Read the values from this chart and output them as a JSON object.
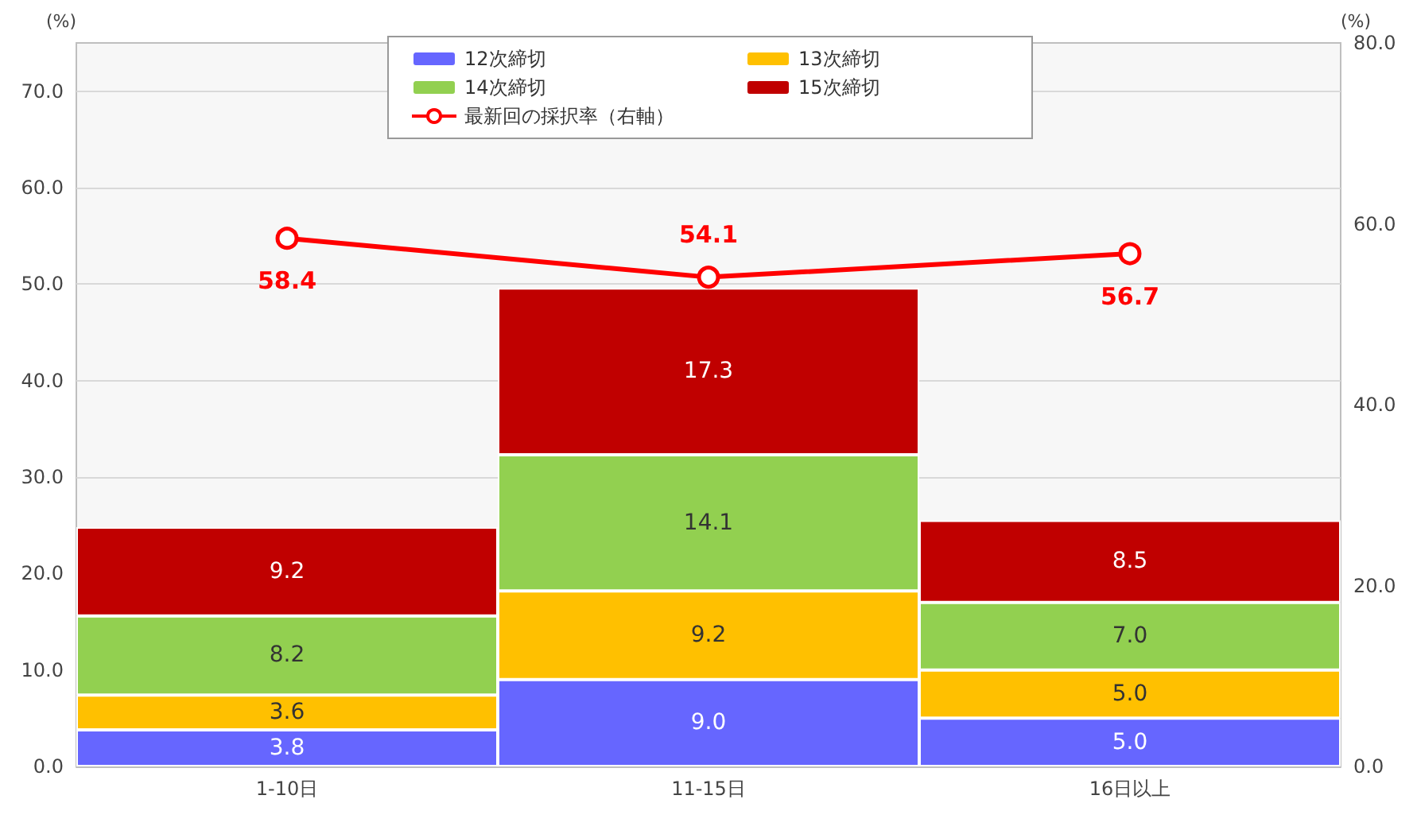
{
  "chart_data": {
    "type": "bar",
    "stacked": true,
    "categories": [
      "1-10日",
      "11-15日",
      "16日以上"
    ],
    "ylabel": "(%)",
    "y2label": "(%)",
    "ylim": [
      0,
      75
    ],
    "yticks": [
      {
        "value": 0,
        "label": "0.0"
      },
      {
        "value": 10,
        "label": "10.0"
      },
      {
        "value": 20,
        "label": "20.0"
      },
      {
        "value": 30,
        "label": "30.0"
      },
      {
        "value": 40,
        "label": "40.0"
      },
      {
        "value": 50,
        "label": "50.0"
      },
      {
        "value": 60,
        "label": "60.0"
      },
      {
        "value": 70,
        "label": "70.0"
      }
    ],
    "y2lim": [
      0,
      80
    ],
    "y2ticks": [
      {
        "value": 0,
        "label": "0.0"
      },
      {
        "value": 20,
        "label": "20.0"
      },
      {
        "value": 40,
        "label": "40.0"
      },
      {
        "value": 60,
        "label": "60.0"
      },
      {
        "value": 80,
        "label": "80.0"
      }
    ],
    "series": [
      {
        "name": "12次締切",
        "color": "#6666ff",
        "values": [
          3.8,
          9,
          5
        ],
        "value_labels": [
          "3.8",
          "9.0",
          "5.0"
        ]
      },
      {
        "name": "13次締切",
        "color": "#ffc000",
        "values": [
          3.6,
          9.2,
          5
        ],
        "value_labels": [
          "3.6",
          "9.2",
          "5.0"
        ]
      },
      {
        "name": "14次締切",
        "color": "#92d050",
        "values": [
          8.2,
          14.1,
          7
        ],
        "value_labels": [
          "8.2",
          "14.1",
          "7.0"
        ]
      },
      {
        "name": "15次締切",
        "color": "#c00000",
        "values": [
          9.2,
          17.3,
          8.5
        ],
        "value_labels": [
          "9.2",
          "17.3",
          "8.5"
        ]
      },
      {
        "name": "最新回の採択率（右軸）",
        "type": "line",
        "axis": "y2",
        "color": "#ff0000",
        "marker": "circle",
        "values": [
          58.4,
          54.1,
          56.7
        ],
        "value_labels": [
          "58.4",
          "54.1",
          "56.7"
        ]
      }
    ],
    "grid": "y",
    "legend": "top"
  }
}
